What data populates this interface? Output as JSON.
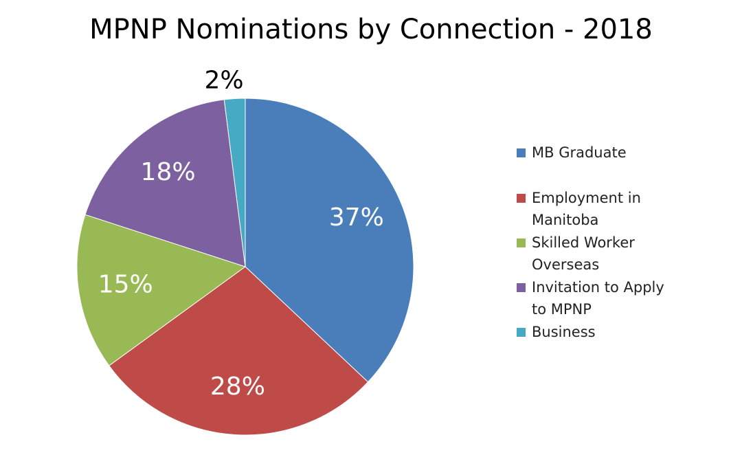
{
  "chart_data": {
    "type": "pie",
    "title": "MPNP Nominations by Connection - 2018",
    "categories": [
      "MB Graduate",
      "Employment in Manitoba",
      "Skilled Worker Overseas",
      "Invitation to Apply to MPNP",
      "Business"
    ],
    "values": [
      37,
      28,
      15,
      18,
      2
    ],
    "value_labels": [
      "37%",
      "28%",
      "15%",
      "18%",
      "2%"
    ],
    "colors": [
      "#4a7ebb",
      "#be4b48",
      "#98b954",
      "#7d60a0",
      "#46aac5"
    ],
    "legend": "right"
  }
}
